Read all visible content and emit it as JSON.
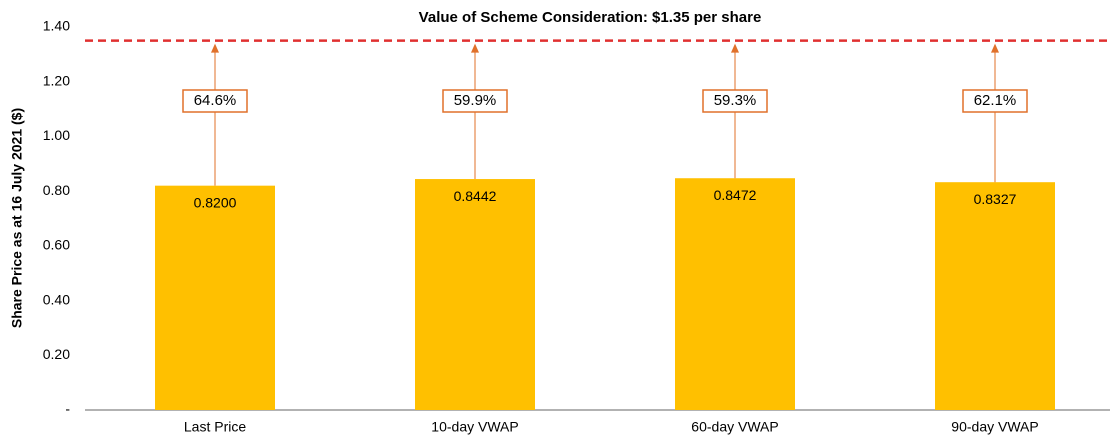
{
  "chart_data": {
    "type": "bar",
    "y_axis_label": "Share Price as at 16 July 2021 ($)",
    "categories": [
      "Last Price",
      "10-day VWAP",
      "60-day VWAP",
      "90-day VWAP"
    ],
    "values": [
      0.82,
      0.8442,
      0.8472,
      0.8327
    ],
    "value_labels": [
      "0.8200",
      "0.8442",
      "0.8472",
      "0.8327"
    ],
    "premium_labels": [
      "64.6%",
      "59.9%",
      "59.3%",
      "62.1%"
    ],
    "color": "#ffc000",
    "annotation_color": "#e0702a",
    "reference_line": {
      "value": 1.35,
      "label": "Value of Scheme Consideration: $1.35 per share",
      "color": "#e03030"
    },
    "ylim": [
      0,
      1.4
    ],
    "yticks": [
      {
        "value": 0,
        "label": "-"
      },
      {
        "value": 0.2,
        "label": "0.20"
      },
      {
        "value": 0.4,
        "label": "0.40"
      },
      {
        "value": 0.6,
        "label": "0.60"
      },
      {
        "value": 0.8,
        "label": "0.80"
      },
      {
        "value": 1,
        "label": "1.00"
      },
      {
        "value": 1.2,
        "label": "1.20"
      },
      {
        "value": 1.4,
        "label": "1.40"
      }
    ],
    "grid": false
  }
}
